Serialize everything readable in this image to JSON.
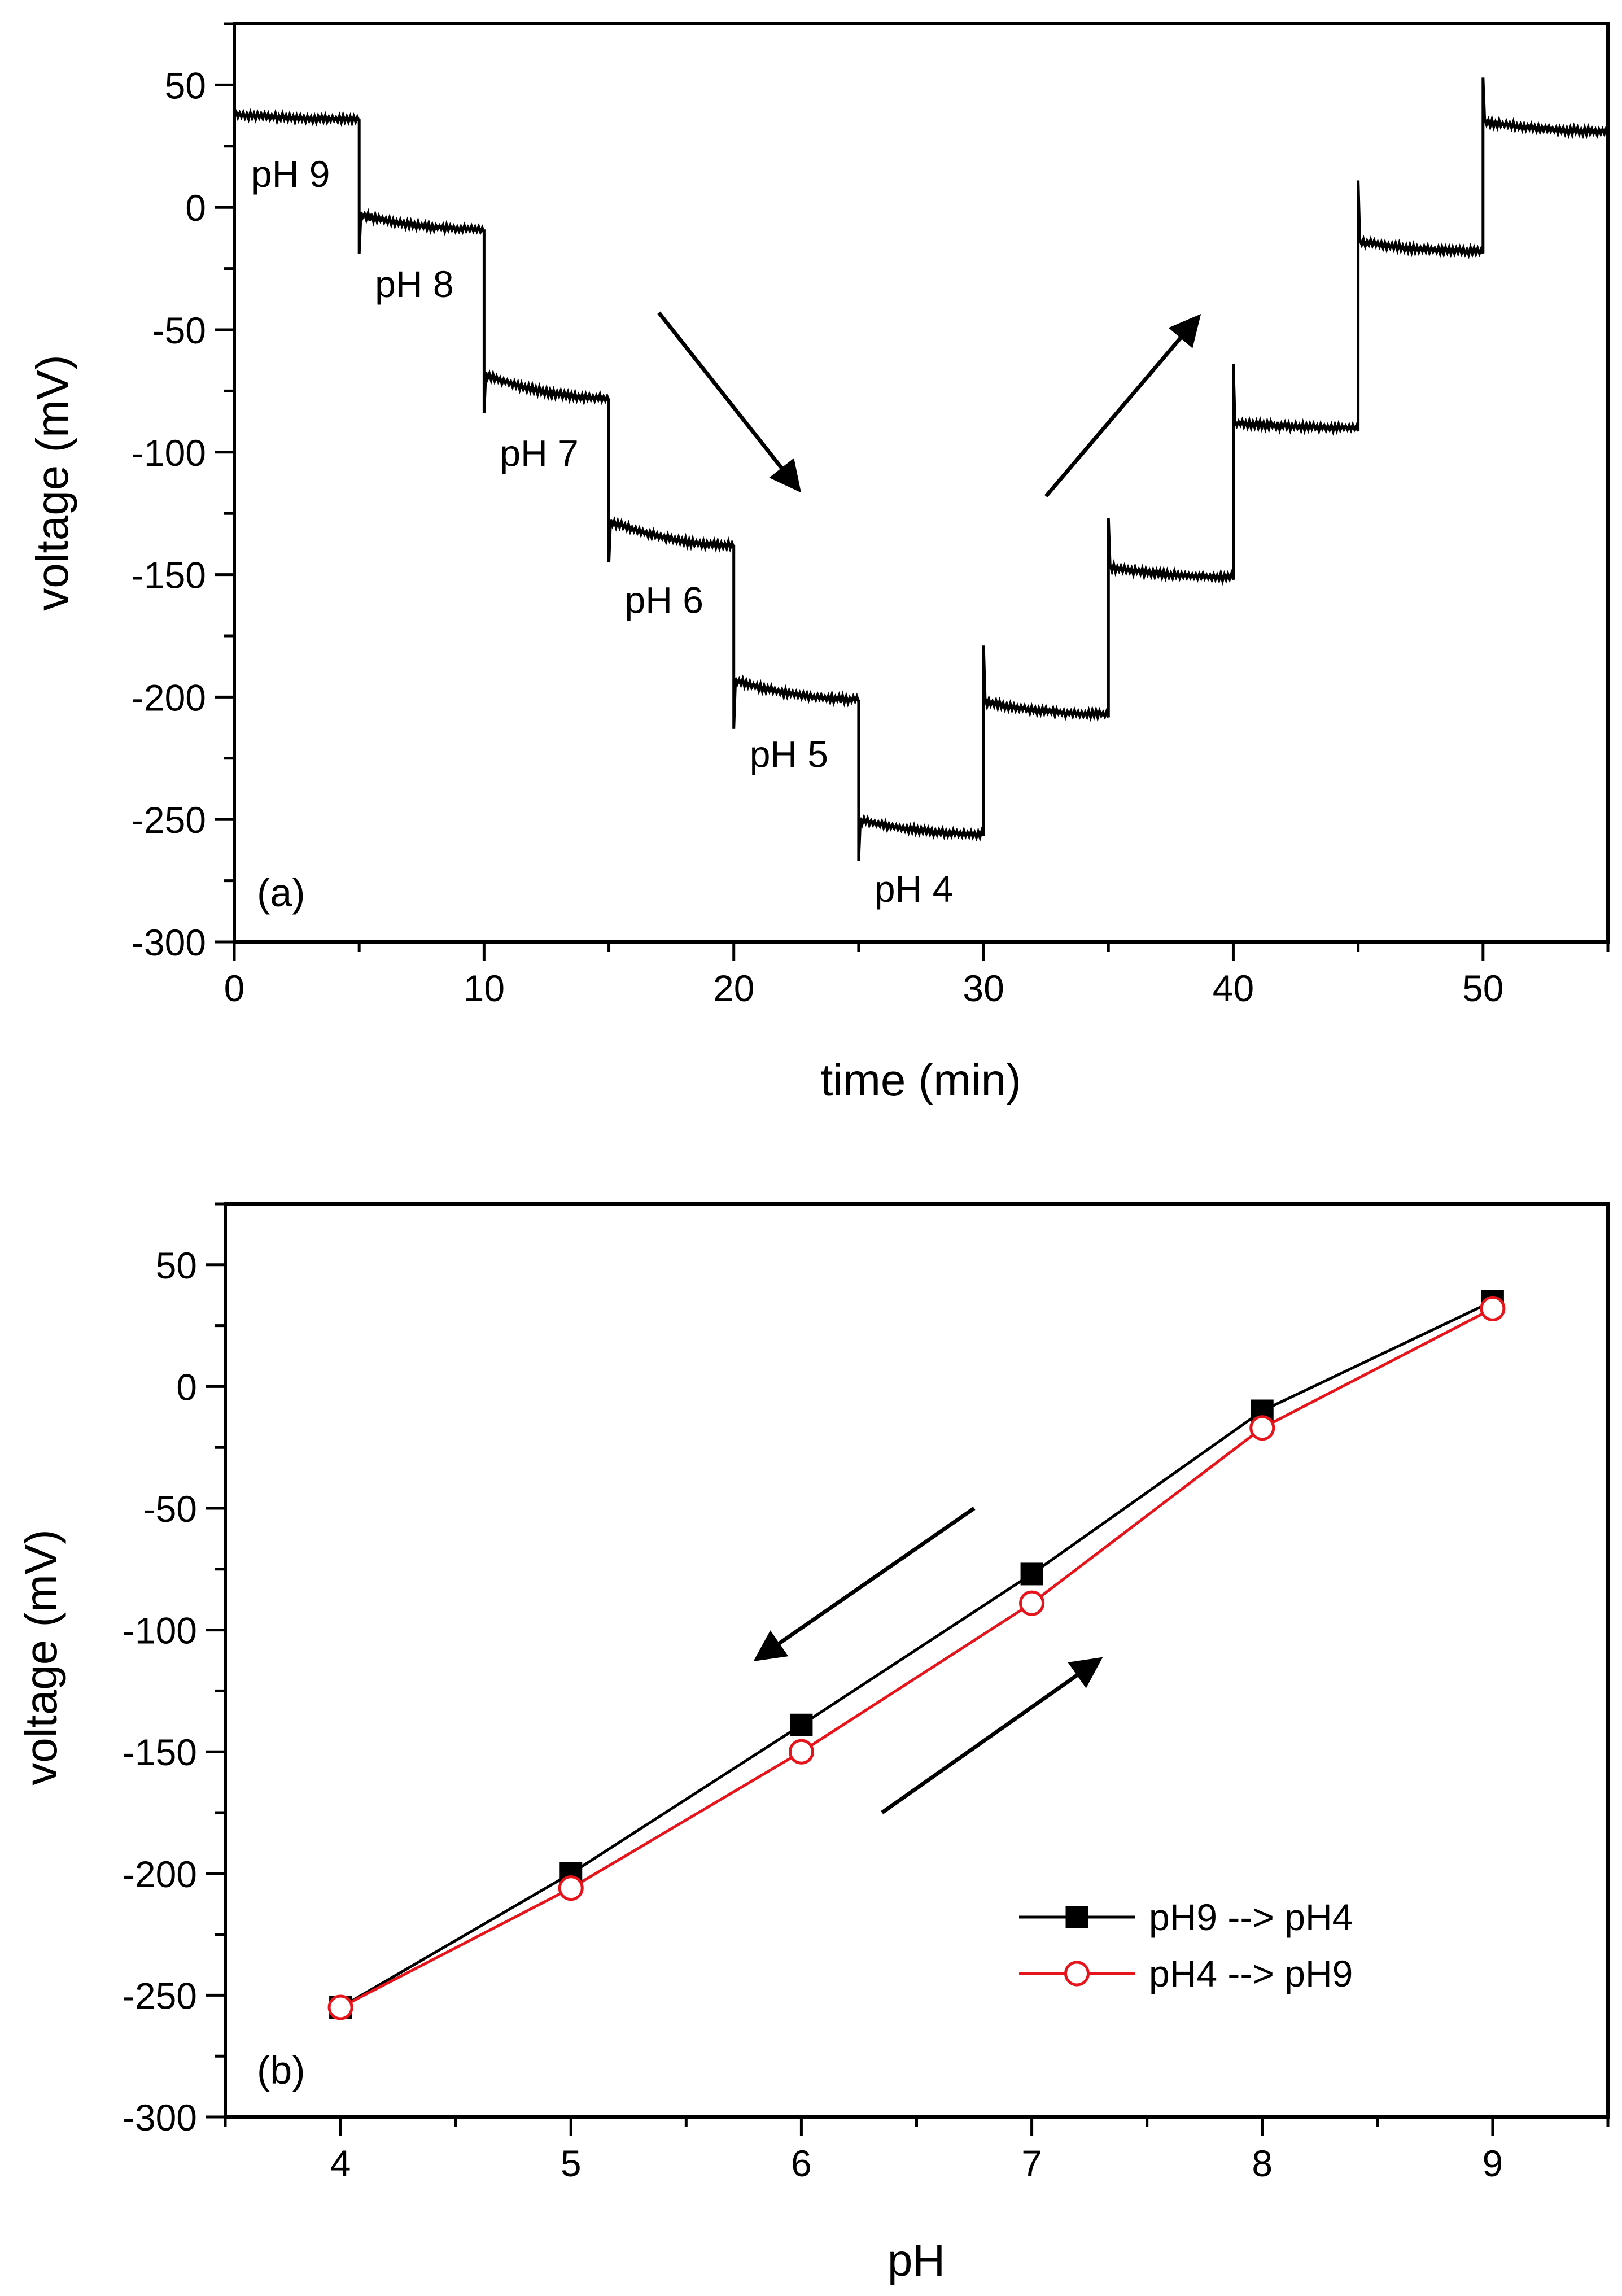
{
  "chart_data": [
    {
      "panel_label": "(a)",
      "type": "line",
      "xlabel": "time (min)",
      "ylabel": "voltage (mV)",
      "xlim": [
        0,
        55
      ],
      "ylim": [
        -300,
        75
      ],
      "xticks": [
        0,
        10,
        20,
        30,
        40,
        50
      ],
      "yticks": [
        50,
        0,
        -50,
        -100,
        -150,
        -200,
        -250,
        -300
      ],
      "tick_labels_x": [
        "0",
        "10",
        "20",
        "30",
        "40",
        "50"
      ],
      "tick_labels_y": [
        "50",
        "0",
        "-50",
        "-100",
        "-150",
        "-200",
        "-250",
        "-300"
      ],
      "segments": [
        {
          "t0": 0,
          "t1": 5,
          "v_start": 38,
          "v_end": 36,
          "spike": null,
          "label": "pH 9"
        },
        {
          "t0": 5,
          "t1": 10,
          "v_start": -3,
          "v_end": -9,
          "spike": -19,
          "label": "pH 8"
        },
        {
          "t0": 10,
          "t1": 15,
          "v_start": -68,
          "v_end": -78,
          "spike": -84,
          "label": "pH 7"
        },
        {
          "t0": 15,
          "t1": 20,
          "v_start": -128,
          "v_end": -138,
          "spike": -145,
          "label": "pH 6"
        },
        {
          "t0": 20,
          "t1": 25,
          "v_start": -193,
          "v_end": -201,
          "spike": -213,
          "label": "pH 5"
        },
        {
          "t0": 25,
          "t1": 30,
          "v_start": -250,
          "v_end": -256,
          "spike": -267,
          "label": "pH 4"
        },
        {
          "t0": 30,
          "t1": 35,
          "v_start": -202,
          "v_end": -207,
          "spike": -179,
          "label": ""
        },
        {
          "t0": 35,
          "t1": 40,
          "v_start": -147,
          "v_end": -151,
          "spike": -127,
          "label": ""
        },
        {
          "t0": 40,
          "t1": 45,
          "v_start": -88,
          "v_end": -90,
          "spike": -64,
          "label": ""
        },
        {
          "t0": 45,
          "t1": 50,
          "v_start": -14,
          "v_end": -18,
          "spike": 11,
          "label": ""
        },
        {
          "t0": 50,
          "t1": 55,
          "v_start": 35,
          "v_end": 31,
          "spike": 53,
          "label": ""
        }
      ],
      "arrows": [
        {
          "from": [
            17,
            -43
          ],
          "to": [
            22.5,
            -114
          ]
        },
        {
          "from": [
            32.5,
            -118
          ],
          "to": [
            38.5,
            -46
          ]
        }
      ]
    },
    {
      "panel_label": "(b)",
      "type": "line",
      "xlabel": "pH",
      "ylabel": "voltage (mV)",
      "xlim": [
        3.5,
        9.5
      ],
      "ylim": [
        -300,
        75
      ],
      "xticks": [
        4,
        5,
        6,
        7,
        8,
        9
      ],
      "yticks": [
        50,
        0,
        -50,
        -100,
        -150,
        -200,
        -250,
        -300
      ],
      "tick_labels_x": [
        "4",
        "5",
        "6",
        "7",
        "8",
        "9"
      ],
      "tick_labels_y": [
        "50",
        "0",
        "-50",
        "-100",
        "-150",
        "-200",
        "-250",
        "-300"
      ],
      "x": [
        4,
        5,
        6,
        7,
        8,
        9
      ],
      "series": [
        {
          "name": "pH9 --> pH4",
          "values": [
            -255,
            -200,
            -139,
            -77,
            -10,
            35
          ],
          "color": "#000000",
          "marker": "filled-square"
        },
        {
          "name": "pH4 --> pH9",
          "values": [
            -255,
            -206,
            -150,
            -89,
            -17,
            32
          ],
          "color": "#e8141b",
          "marker": "open-circle"
        }
      ],
      "legend_position": "bottom-right",
      "arrows": [
        {
          "from": [
            6.75,
            -50
          ],
          "to": [
            5.82,
            -111
          ]
        },
        {
          "from": [
            6.35,
            -175
          ],
          "to": [
            7.28,
            -113
          ]
        }
      ]
    }
  ]
}
